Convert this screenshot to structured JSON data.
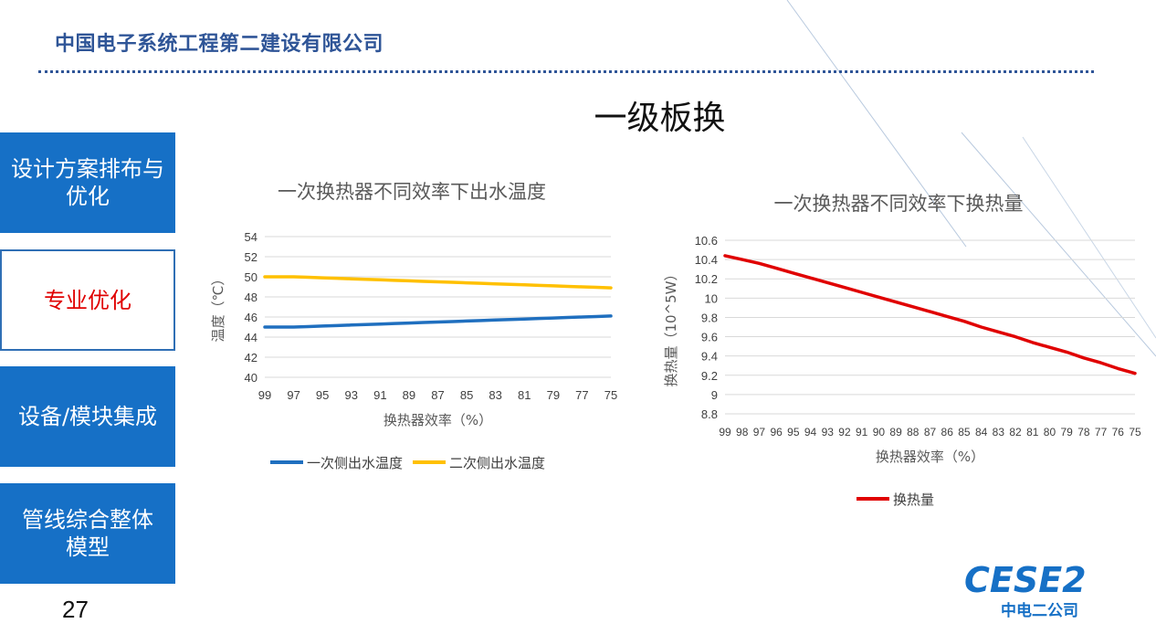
{
  "header": {
    "company": "中国电子系统工程第二建设有限公司"
  },
  "slide": {
    "title": "一级板换",
    "page_number": "27"
  },
  "sidebar": {
    "items": [
      {
        "label": "设计方案排布与优化",
        "line1": "设计方案排布与",
        "line2": "优化",
        "active": false
      },
      {
        "label": "专业优化",
        "active": true
      },
      {
        "label": "设备/模块集成",
        "active": false
      },
      {
        "label": "管线综合整体模型",
        "line1": "管线综合整体",
        "line2": "模型",
        "active": false
      }
    ]
  },
  "logo": {
    "wordmark": "CESE2",
    "subtitle": "中电二公司"
  },
  "colors": {
    "brand_blue": "#2f5597",
    "nav_blue": "#1670c6",
    "active_text": "#e00000",
    "series_blue": "#1f6fbf",
    "series_yellow": "#ffc000",
    "series_red": "#e00000"
  },
  "chart_data": [
    {
      "type": "line",
      "title": "一次换热器不同效率下出水温度",
      "xlabel": "换热器效率（%）",
      "ylabel": "温度（℃）",
      "categories": [
        "99",
        "98",
        "97",
        "96",
        "95",
        "94",
        "93",
        "92",
        "91",
        "90",
        "89",
        "88",
        "87",
        "86",
        "85",
        "84",
        "83",
        "82",
        "81",
        "80",
        "79",
        "78",
        "77",
        "76",
        "75"
      ],
      "tick_labels": [
        "99",
        "97",
        "95",
        "93",
        "91",
        "89",
        "87",
        "85",
        "83",
        "81",
        "79",
        "77",
        "75"
      ],
      "ylim": [
        40,
        54
      ],
      "yticks": [
        "54",
        "52",
        "50",
        "48",
        "46",
        "44",
        "42",
        "40"
      ],
      "grid": true,
      "legend": "bottom",
      "series": [
        {
          "name": "一次侧出水温度",
          "color": "#1f6fbf",
          "values": [
            45.0,
            45.0,
            45.0,
            45.05,
            45.1,
            45.15,
            45.2,
            45.25,
            45.3,
            45.35,
            45.4,
            45.45,
            45.5,
            45.55,
            45.6,
            45.65,
            45.7,
            45.75,
            45.8,
            45.85,
            45.9,
            45.95,
            46.0,
            46.05,
            46.1
          ]
        },
        {
          "name": "二次侧出水温度",
          "color": "#ffc000",
          "values": [
            50.0,
            50.0,
            50.0,
            49.95,
            49.9,
            49.85,
            49.8,
            49.75,
            49.7,
            49.65,
            49.6,
            49.55,
            49.5,
            49.45,
            49.4,
            49.35,
            49.3,
            49.25,
            49.2,
            49.15,
            49.1,
            49.05,
            49.0,
            48.95,
            48.9
          ]
        }
      ]
    },
    {
      "type": "line",
      "title": "一次换热器不同效率下换热量",
      "xlabel": "换热器效率（%）",
      "ylabel": "换热量（10^5W）",
      "categories": [
        "99",
        "98",
        "97",
        "96",
        "95",
        "94",
        "93",
        "92",
        "91",
        "90",
        "89",
        "88",
        "87",
        "86",
        "85",
        "84",
        "83",
        "82",
        "81",
        "80",
        "79",
        "78",
        "77",
        "76",
        "75"
      ],
      "ylim": [
        8.8,
        10.6
      ],
      "yticks": [
        "10.6",
        "10.4",
        "10.2",
        "10",
        "9.8",
        "9.6",
        "9.4",
        "9.2",
        "9",
        "8.8"
      ],
      "grid": true,
      "legend": "bottom",
      "series": [
        {
          "name": "换热量",
          "color": "#e00000",
          "values": [
            10.44,
            10.4,
            10.36,
            10.31,
            10.26,
            10.21,
            10.16,
            10.11,
            10.06,
            10.01,
            9.96,
            9.91,
            9.86,
            9.81,
            9.76,
            9.7,
            9.65,
            9.6,
            9.54,
            9.49,
            9.44,
            9.38,
            9.33,
            9.27,
            9.22
          ]
        }
      ]
    }
  ]
}
